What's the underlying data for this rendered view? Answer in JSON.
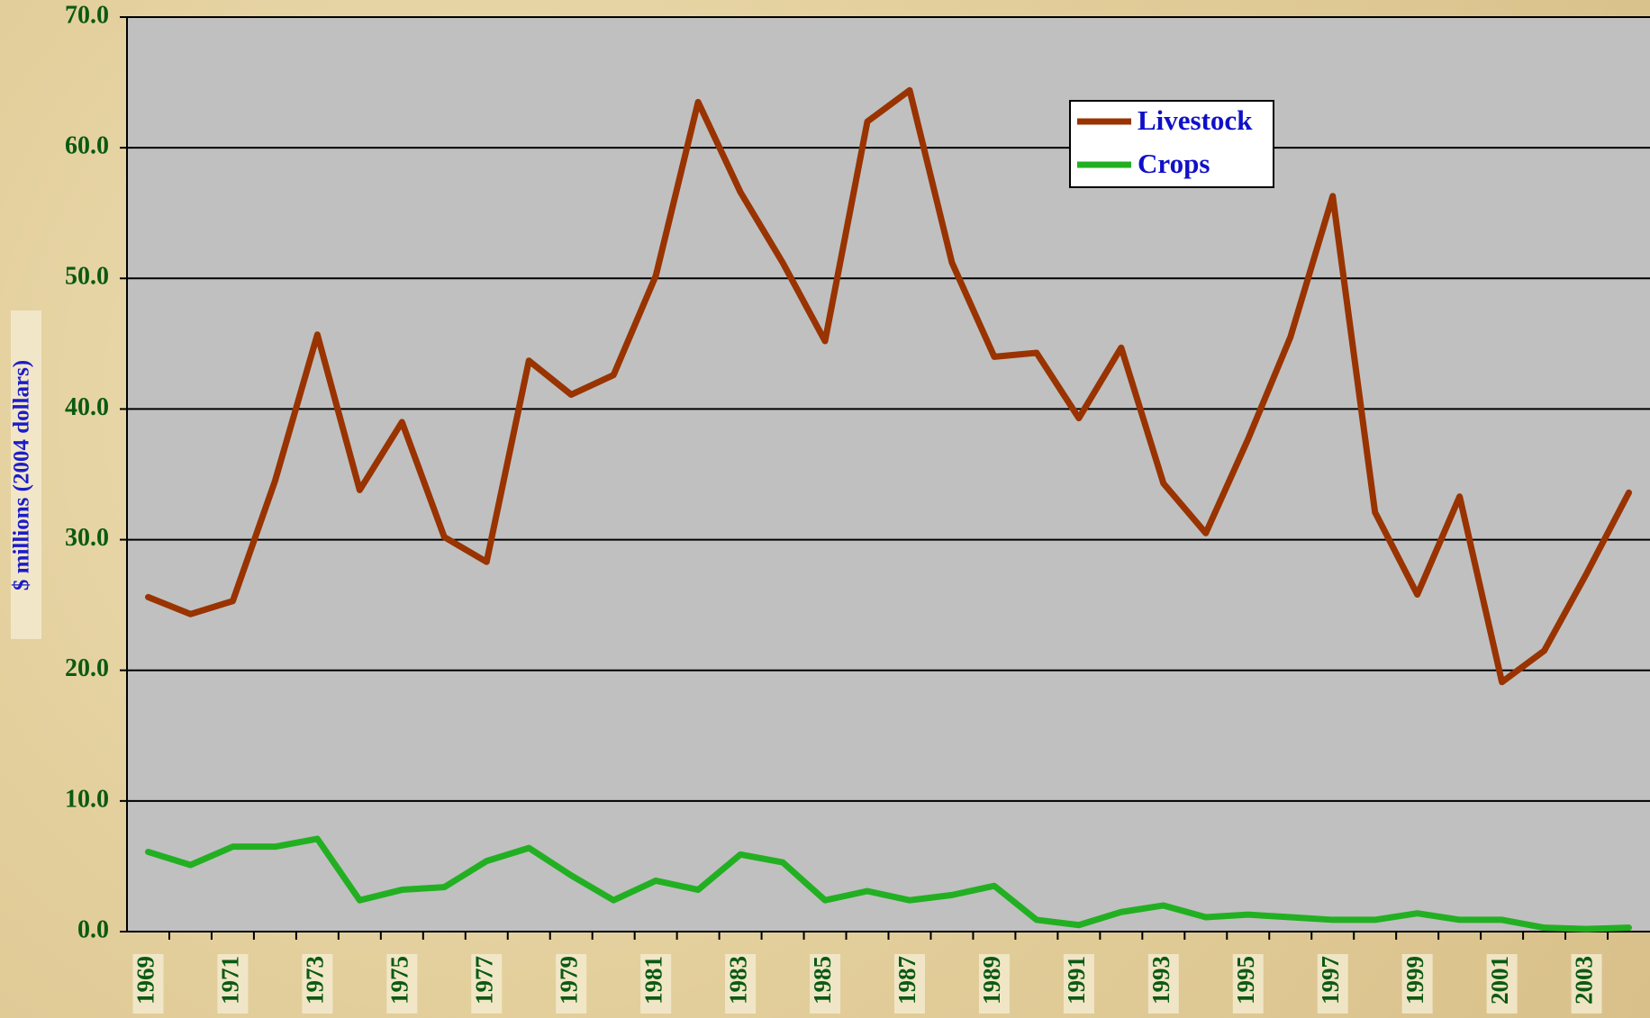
{
  "chart_data": {
    "type": "line",
    "y_label": "$ millions (2004 dollars)",
    "categories": [
      "1969",
      null,
      "1971",
      null,
      "1973",
      null,
      "1975",
      null,
      "1977",
      null,
      "1979",
      null,
      "1981",
      null,
      "1983",
      null,
      "1985",
      null,
      "1987",
      null,
      "1989",
      null,
      "1991",
      null,
      "1993",
      null,
      "1995",
      null,
      "1997",
      null,
      "1999",
      null,
      "2001",
      null,
      "2003",
      null
    ],
    "series": [
      {
        "name": "Livestock",
        "color": "#993300",
        "values": [
          25.6,
          24.3,
          25.3,
          34.5,
          45.7,
          33.8,
          39.0,
          30.2,
          28.3,
          43.7,
          41.1,
          42.6,
          50.2,
          63.5,
          56.6,
          51.2,
          45.2,
          62.0,
          64.4,
          51.2,
          44.0,
          44.3,
          39.3,
          44.7,
          34.3,
          30.5,
          37.7,
          45.5,
          56.3,
          32.1,
          25.8,
          33.3,
          19.1,
          21.5,
          27.4,
          33.6
        ]
      },
      {
        "name": "Crops",
        "color": "#22b022",
        "values": [
          6.1,
          5.1,
          6.5,
          6.5,
          7.1,
          2.4,
          3.2,
          3.4,
          5.4,
          6.4,
          4.3,
          2.4,
          3.9,
          3.2,
          5.9,
          5.3,
          2.4,
          3.1,
          2.4,
          2.8,
          3.5,
          0.9,
          0.5,
          1.5,
          2.0,
          1.1,
          1.3,
          1.1,
          0.9,
          0.9,
          1.4,
          0.9,
          0.9,
          0.3,
          0.2,
          0.3
        ]
      }
    ],
    "ylim": [
      0,
      70
    ],
    "yticks": [
      {
        "value": 0,
        "label": "0.0"
      },
      {
        "value": 10,
        "label": "10.0"
      },
      {
        "value": 20,
        "label": "20.0"
      },
      {
        "value": 30,
        "label": "30.0"
      },
      {
        "value": 40,
        "label": "40.0"
      },
      {
        "value": 50,
        "label": "50.0"
      },
      {
        "value": 60,
        "label": "60.0"
      },
      {
        "value": 70,
        "label": "70.0"
      }
    ],
    "grid": true,
    "legend": "upper right"
  }
}
